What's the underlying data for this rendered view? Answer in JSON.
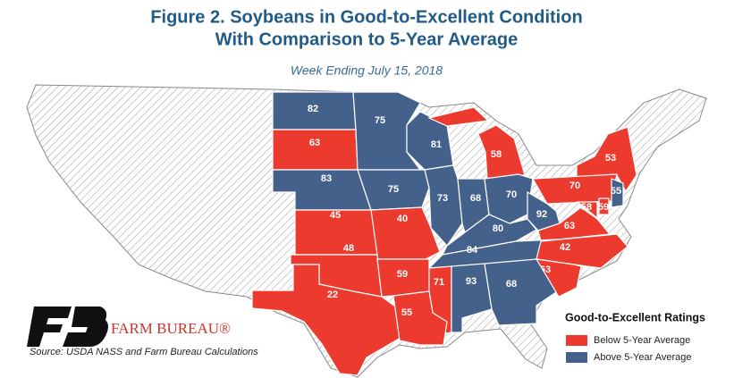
{
  "map": {
    "title": "Figure 2. Soybeans in Good-to-Excellent Condition",
    "title_line2": "With Comparison to 5-Year Average",
    "subtitle": "Week Ending July 15, 2018",
    "brand": "FARM BUREAU®",
    "source": "Source: USDA NASS and Farm Bureau Calculations",
    "legend": {
      "title": "Good-to-Excellent Ratings",
      "items": [
        {
          "label": "Below 5-Year Average",
          "color": "#ec3a2e"
        },
        {
          "label": "Above 5-Year Average",
          "color": "#44618b"
        }
      ]
    },
    "states": [
      {
        "value": 82,
        "color": "#44618b"
      },
      {
        "value": 63,
        "color": "#ec3a2e"
      },
      {
        "value": 75,
        "color": "#44618b"
      },
      {
        "value": 81,
        "color": "#44618b"
      },
      {
        "value": 58,
        "color": "#ec3a2e"
      },
      {
        "value": 53,
        "color": "#ec3a2e"
      },
      {
        "value": 83,
        "color": "#44618b"
      },
      {
        "value": 75,
        "color": "#44618b"
      },
      {
        "value": 73,
        "color": "#44618b"
      },
      {
        "value": 68,
        "color": "#44618b"
      },
      {
        "value": 70,
        "color": "#44618b"
      },
      {
        "value": 70,
        "color": "#ec3a2e"
      },
      {
        "value": 55,
        "color": "#44618b"
      },
      {
        "value": 45,
        "color": "#ec3a2e"
      },
      {
        "value": 40,
        "color": "#ec3a2e"
      },
      {
        "value": 80,
        "color": "#44618b"
      },
      {
        "value": 92,
        "color": "#44618b"
      },
      {
        "value": 63,
        "color": "#ec3a2e"
      },
      {
        "value": 58,
        "color": "#ec3a2e"
      },
      {
        "value": 59,
        "color": "#ec3a2e"
      },
      {
        "value": 48,
        "color": "#ec3a2e"
      },
      {
        "value": 84,
        "color": "#44618b"
      },
      {
        "value": 42,
        "color": "#ec3a2e"
      },
      {
        "value": 59,
        "color": "#ec3a2e"
      },
      {
        "value": 63,
        "color": "#ec3a2e"
      },
      {
        "value": 71,
        "color": "#ec3a2e"
      },
      {
        "value": 93,
        "color": "#44618b"
      },
      {
        "value": 68,
        "color": "#44618b"
      },
      {
        "value": 22,
        "color": "#ec3a2e"
      },
      {
        "value": 55,
        "color": "#ec3a2e"
      }
    ]
  }
}
